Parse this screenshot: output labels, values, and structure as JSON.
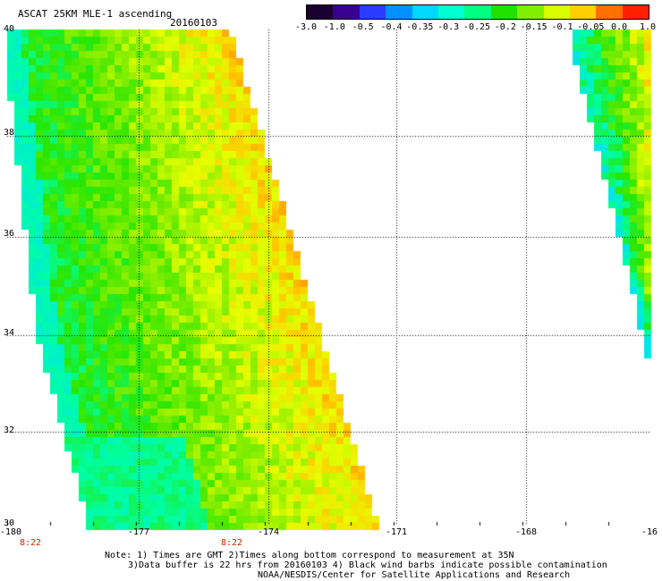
{
  "title": "ASCAT 25KM MLE-1 ascending",
  "date": "20160103",
  "colorbar": {
    "labels": [
      "-3.0",
      "-1.0",
      "-0.5",
      "-0.4",
      "-0.35",
      "-0.3",
      "-0.25",
      "-0.2",
      "-0.15",
      "-0.1",
      "-0.05",
      "0.0",
      "1.0"
    ],
    "colors": [
      "#1a0030",
      "#3a0090",
      "#2a3cff",
      "#0090ff",
      "#00d8ff",
      "#00ffd0",
      "#00ff80",
      "#20e000",
      "#80f000",
      "#d8ff00",
      "#ffd000",
      "#ff7000",
      "#ff2000"
    ]
  },
  "lat_labels": [
    "40",
    "38",
    "36",
    "34",
    "32",
    "30"
  ],
  "lon_labels": [
    "-180",
    "-177",
    "-174",
    "-171",
    "-168",
    "-16"
  ],
  "time_labels": [
    "8:22",
    "8:22"
  ],
  "notes": [
    "Note: 1) Times are GMT 2)Times along bottom correspond to measurement at 35N",
    "3)Data buffer is 22 hrs from 20160103 4) Black wind barbs indicate possible contamination",
    "NOAA/NESDIS/Center for Satellite Applications and Research"
  ]
}
